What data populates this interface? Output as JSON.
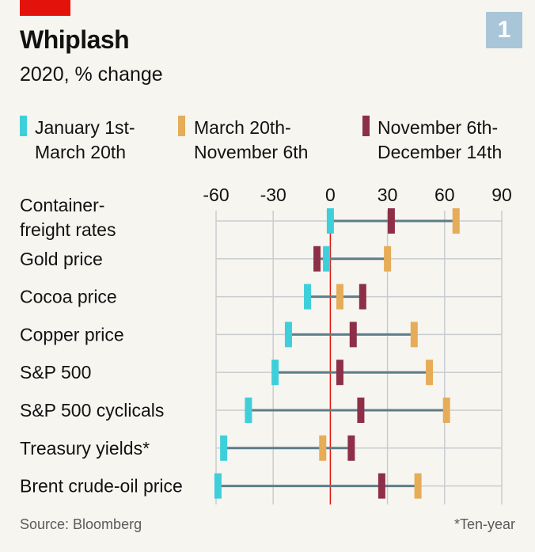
{
  "title": "Whiplash",
  "subtitle": "2020, % change",
  "badge": "1",
  "source": "Source: Bloomberg",
  "footnote": "*Ten-year",
  "colors": {
    "period1": "#3ecfda",
    "period2": "#e6ac58",
    "period3": "#8e2f48",
    "connector": "#5d7d88",
    "zero_line": "#e3120b",
    "grid": "#c9cdd0"
  },
  "chart_data": {
    "type": "dot-range",
    "title": "Whiplash",
    "subtitle": "2020, % change",
    "x_ticks": [
      -60,
      -30,
      0,
      30,
      60,
      90
    ],
    "xlim": [
      -60,
      90
    ],
    "legend": [
      {
        "key": "p1",
        "label": "January 1st-\nMarch 20th"
      },
      {
        "key": "p2",
        "label": "March 20th-\nNovember 6th"
      },
      {
        "key": "p3",
        "label": "November 6th-\nDecember 14th"
      }
    ],
    "rows": [
      {
        "label": "Container-\nfreight rates",
        "p1": 0,
        "p2": 66,
        "p3": 32
      },
      {
        "label": "Gold price",
        "p1": -2,
        "p2": 30,
        "p3": -7
      },
      {
        "label": "Cocoa price",
        "p1": -12,
        "p2": 5,
        "p3": 17
      },
      {
        "label": "Copper price",
        "p1": -22,
        "p2": 44,
        "p3": 12
      },
      {
        "label": "S&P 500",
        "p1": -29,
        "p2": 52,
        "p3": 5
      },
      {
        "label": "S&P 500 cyclicals",
        "p1": -43,
        "p2": 61,
        "p3": 16
      },
      {
        "label": "Treasury yields*",
        "p1": -56,
        "p2": -4,
        "p3": 11
      },
      {
        "label": "Brent crude-oil price",
        "p1": -59,
        "p2": 46,
        "p3": 27
      }
    ]
  }
}
